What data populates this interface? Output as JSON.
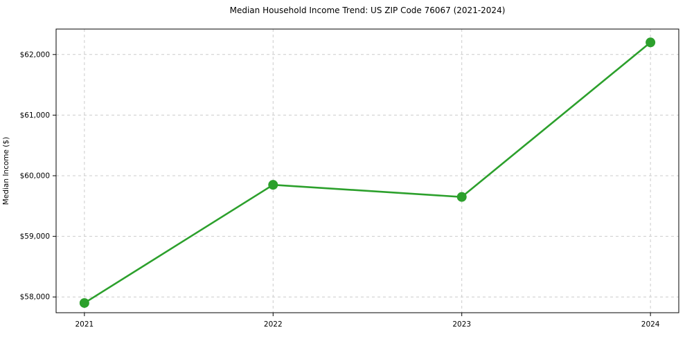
{
  "chart_data": {
    "type": "line",
    "title": "Median Household Income Trend: US ZIP Code 76067 (2021-2024)",
    "xlabel": "",
    "ylabel": "Median Income ($)",
    "x": [
      2021,
      2022,
      2023,
      2024
    ],
    "x_tick_labels": [
      "2021",
      "2022",
      "2023",
      "2024"
    ],
    "series": [
      {
        "name": "Median Household Income",
        "values": [
          57900,
          59850,
          59650,
          62200
        ]
      }
    ],
    "y_ticks": [
      58000,
      59000,
      60000,
      61000,
      62000
    ],
    "y_tick_labels": [
      "$58,000",
      "$59,000",
      "$60,000",
      "$61,000",
      "$62,000"
    ],
    "xlim": [
      2020.85,
      2024.15
    ],
    "ylim": [
      57740,
      62420
    ],
    "grid": true,
    "grid_style": "dashed",
    "legend_position": "none",
    "colors": {
      "line": "#2ca02c",
      "marker": "#2ca02c",
      "grid": "#cccccc",
      "axis": "#000000",
      "tick_text": "#000000",
      "background": "#ffffff"
    },
    "marker_shape": "circle"
  }
}
